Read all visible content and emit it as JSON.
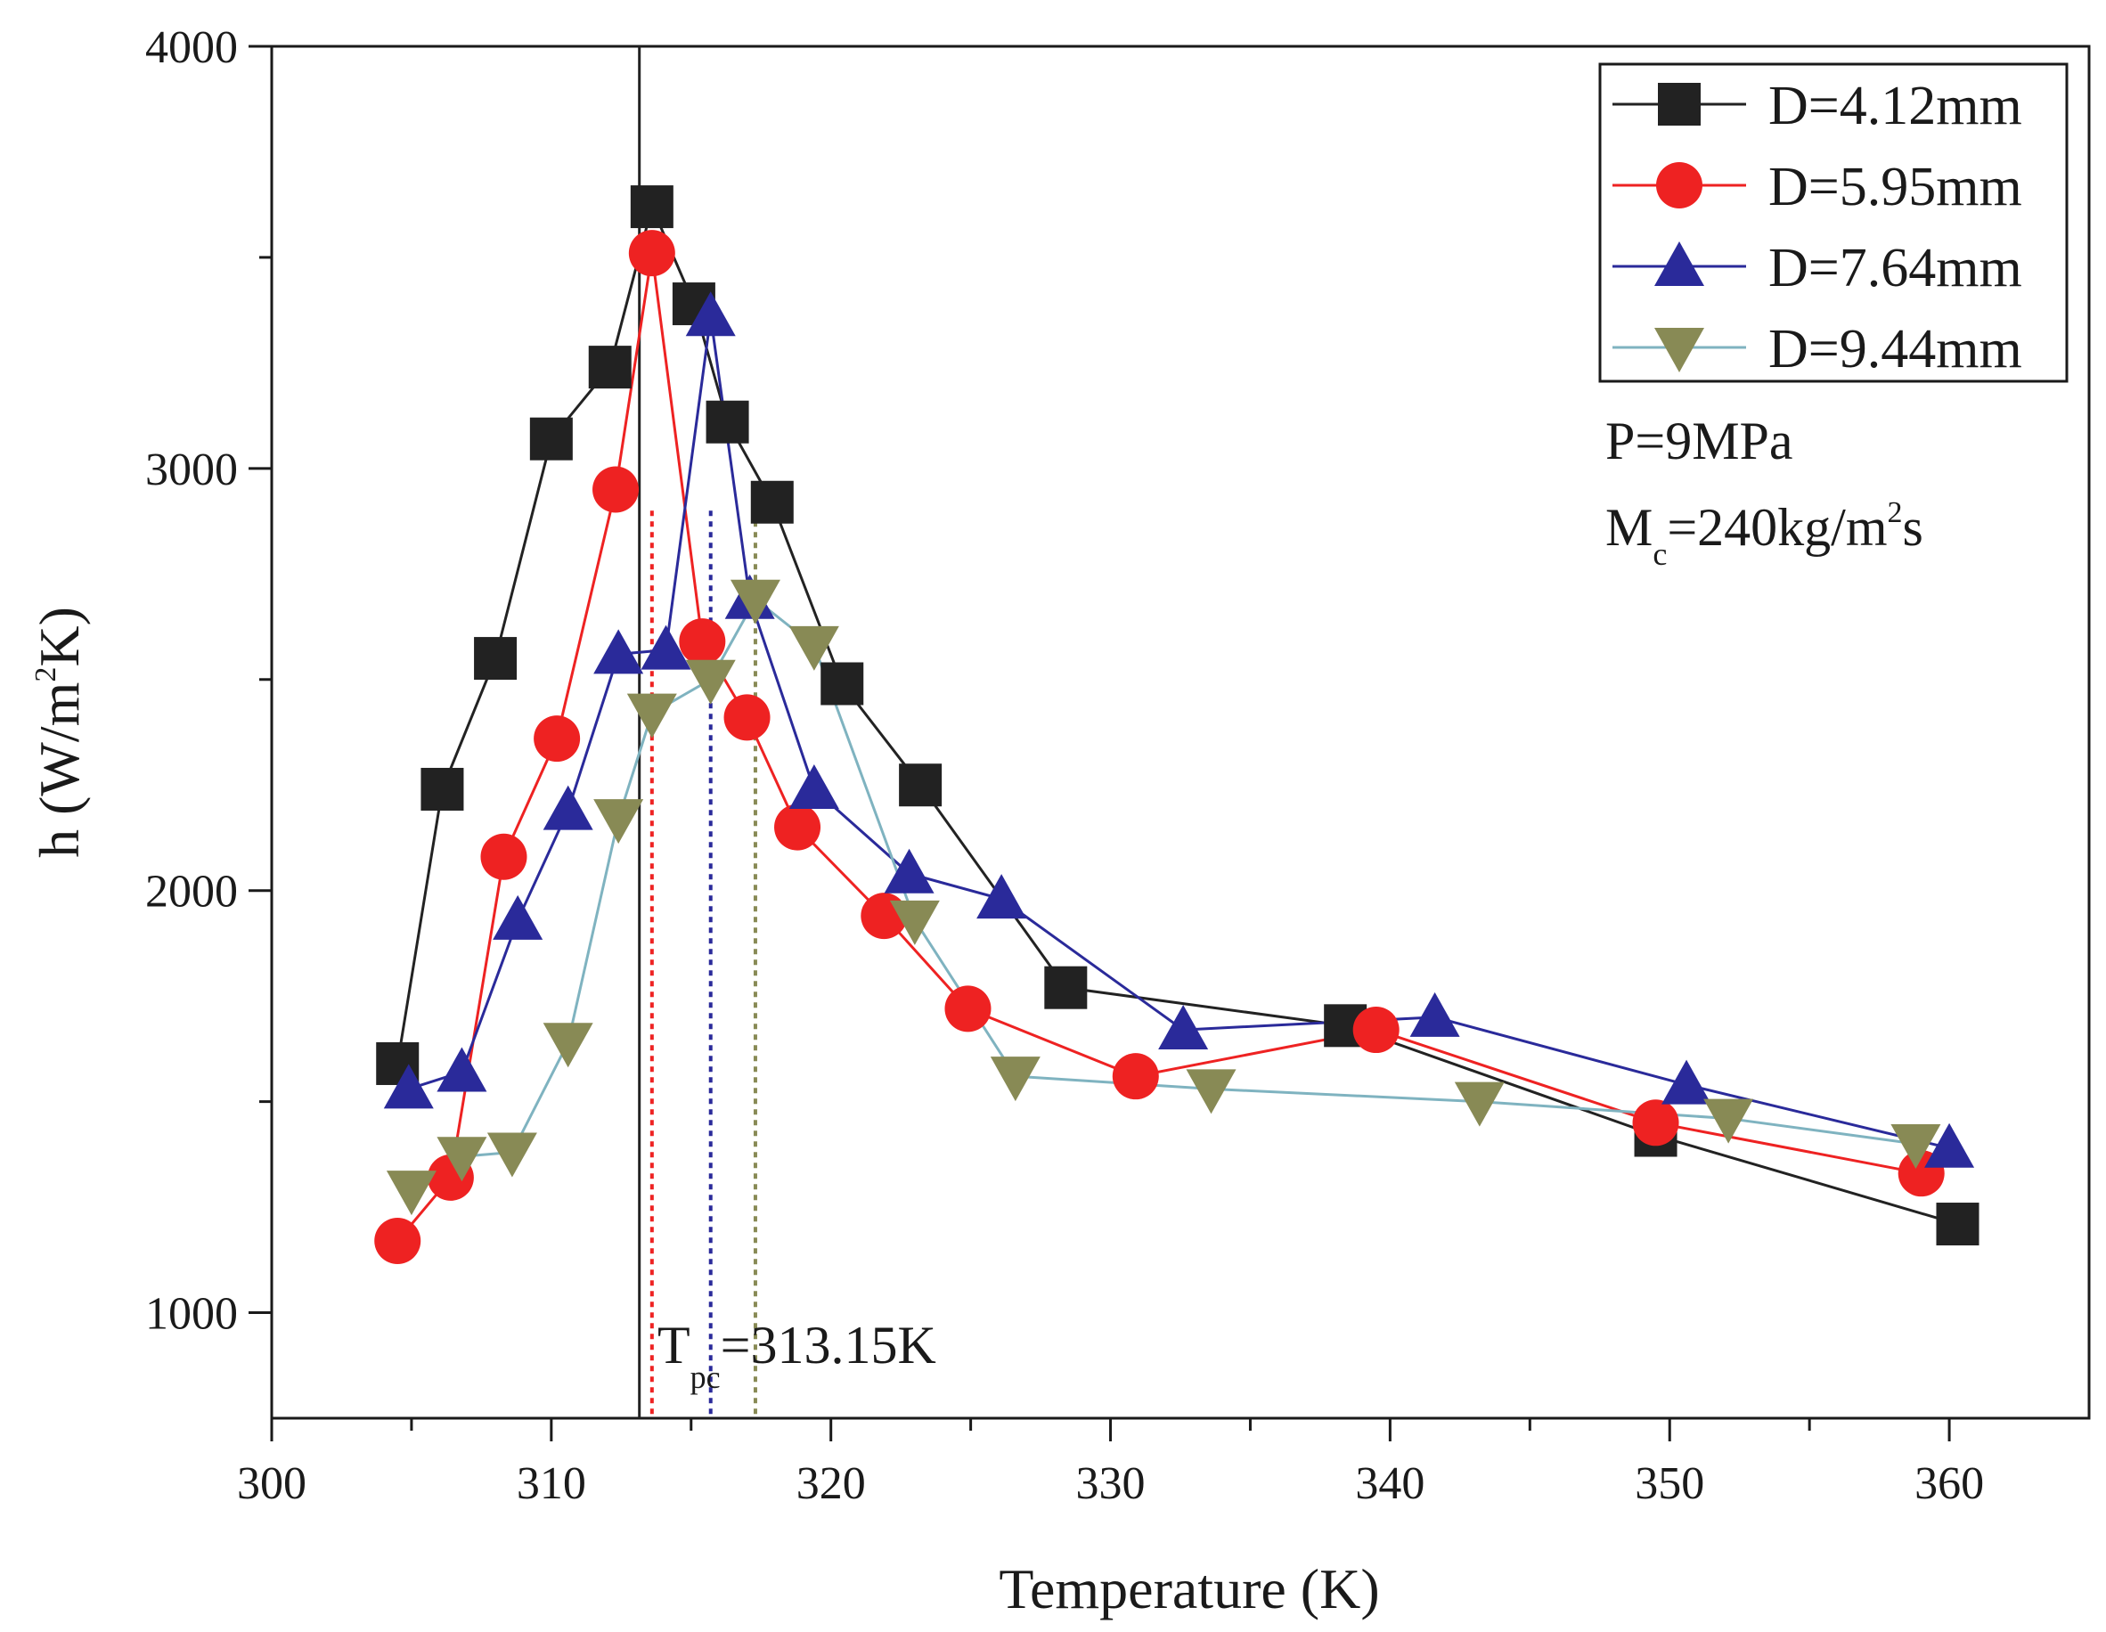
{
  "chart_data": {
    "type": "line",
    "title": "",
    "xlabel": "Temperature (K)",
    "ylabel": {
      "main": "h (W/m",
      "sup": "2",
      "tail": "K)"
    },
    "xlim": [
      300,
      365
    ],
    "ylim": [
      750,
      4000
    ],
    "xticks": [
      300,
      310,
      320,
      330,
      340,
      350,
      360
    ],
    "yticks": [
      1000,
      2000,
      3000,
      4000
    ],
    "xtick_labels": [
      "300",
      "310",
      "320",
      "330",
      "340",
      "350",
      "360"
    ],
    "ytick_labels": [
      "1000",
      "2000",
      "3000",
      "4000"
    ],
    "legend_position": "top-right",
    "series": [
      {
        "name": "D=4.12mm",
        "color": "#222222",
        "marker": "square",
        "x": [
          304.5,
          306.1,
          308.0,
          310.0,
          312.1,
          313.6,
          315.1,
          316.3,
          317.9,
          320.4,
          323.2,
          328.4,
          338.4,
          349.5,
          360.3
        ],
        "y": [
          1590,
          2240,
          2550,
          3070,
          3240,
          3620,
          3390,
          3110,
          2920,
          2490,
          2250,
          1770,
          1680,
          1420,
          1210
        ]
      },
      {
        "name": "D=5.95mm",
        "color": "#ee2222",
        "marker": "circle",
        "x": [
          304.5,
          306.4,
          308.3,
          310.2,
          312.3,
          313.6,
          315.4,
          317.0,
          318.8,
          321.9,
          324.9,
          330.9,
          339.5,
          349.5,
          359.0
        ],
        "y": [
          1170,
          1320,
          2080,
          2360,
          2950,
          3510,
          2590,
          2410,
          2150,
          1940,
          1720,
          1560,
          1670,
          1450,
          1330
        ]
      },
      {
        "name": "D=7.64mm",
        "color": "#2a2a9a",
        "marker": "triangle-up",
        "x": [
          304.9,
          306.8,
          308.8,
          310.6,
          312.4,
          314.1,
          315.7,
          317.1,
          319.4,
          322.8,
          326.1,
          332.6,
          341.6,
          350.6,
          360.0
        ],
        "y": [
          1530,
          1570,
          1930,
          2190,
          2560,
          2570,
          3360,
          2690,
          2240,
          2040,
          1980,
          1670,
          1700,
          1540,
          1390
        ]
      },
      {
        "name": "D=9.44mm",
        "color": "#7fb3c0",
        "markerColor": "#888a55",
        "marker": "triangle-down",
        "x": [
          305.0,
          306.8,
          308.6,
          310.6,
          312.4,
          313.6,
          315.7,
          317.3,
          319.4,
          323.0,
          326.6,
          333.6,
          343.2,
          352.1,
          358.8
        ],
        "y": [
          1290,
          1370,
          1380,
          1640,
          2170,
          2420,
          2500,
          2690,
          2580,
          1930,
          1560,
          1530,
          1500,
          1460,
          1400
        ]
      }
    ],
    "vertical_lines": [
      {
        "x": 313.15,
        "color": "#222222",
        "style": "solid"
      },
      {
        "x": 313.6,
        "color": "#ee2222",
        "style": "dotted"
      },
      {
        "x": 315.7,
        "color": "#2a2a9a",
        "style": "dotted"
      },
      {
        "x": 317.3,
        "color": "#888a55",
        "style": "dotted"
      }
    ],
    "annotations": {
      "tpc": {
        "main": "T",
        "sub": "pc",
        "value": "=313.15K"
      },
      "pressure": "P=9MPa",
      "mass_flux": {
        "main": "M",
        "sub": "c",
        "mid": "=240kg/m",
        "sup": "2",
        "tail": "s"
      }
    }
  }
}
